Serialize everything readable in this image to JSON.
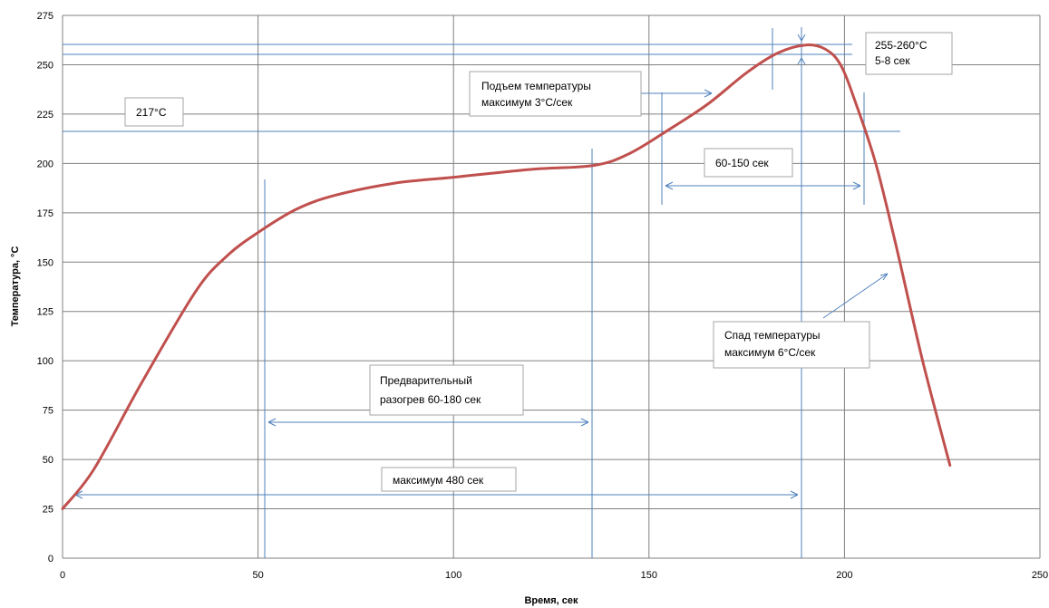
{
  "chart_data": {
    "type": "line",
    "title": "",
    "xlabel": "Время, сек",
    "ylabel": "Температура, °С",
    "xlim": [
      0,
      250
    ],
    "ylim": [
      0,
      275
    ],
    "x_ticks": [
      0,
      50,
      100,
      150,
      200,
      250
    ],
    "y_ticks": [
      0,
      25,
      50,
      75,
      100,
      125,
      150,
      175,
      200,
      225,
      250,
      275
    ],
    "grid": true,
    "legend": "none",
    "series": [
      {
        "color": "#c0504d",
        "points": [
          [
            0,
            25
          ],
          [
            8,
            45
          ],
          [
            20,
            88
          ],
          [
            34,
            135
          ],
          [
            42,
            153
          ],
          [
            50,
            165
          ],
          [
            60,
            177
          ],
          [
            70,
            184
          ],
          [
            85,
            190
          ],
          [
            100,
            193
          ],
          [
            120,
            197
          ],
          [
            136,
            199
          ],
          [
            145,
            205
          ],
          [
            155,
            217
          ],
          [
            165,
            230
          ],
          [
            175,
            246
          ],
          [
            183,
            256
          ],
          [
            190,
            260
          ],
          [
            195,
            258
          ],
          [
            199,
            250
          ],
          [
            203,
            230
          ],
          [
            208,
            200
          ],
          [
            213,
            160
          ],
          [
            220,
            100
          ],
          [
            227,
            47
          ]
        ]
      }
    ],
    "reference_lines": {
      "horizontal": [
        217,
        255,
        260
      ],
      "vertical": [
        51,
        135,
        189
      ]
    },
    "annotations": {
      "t217": "217°С",
      "peak_line1": "255-260°С",
      "peak_line2": "5-8 сек",
      "rise_line1": "Подъем температуры",
      "rise_line2": "максимум 3°С/сек",
      "tal": "60-150 сек",
      "fall_line1": "Спад температуры",
      "fall_line2": "максимум 6°С/сек",
      "preheat_line1": "Предварительный",
      "preheat_line2": "разогрев 60-180 сек",
      "max480": "максимум 480 сек"
    }
  },
  "colors": {
    "curve": "#c0504d",
    "annotation": "#4f81bd",
    "grid": "#808080"
  }
}
